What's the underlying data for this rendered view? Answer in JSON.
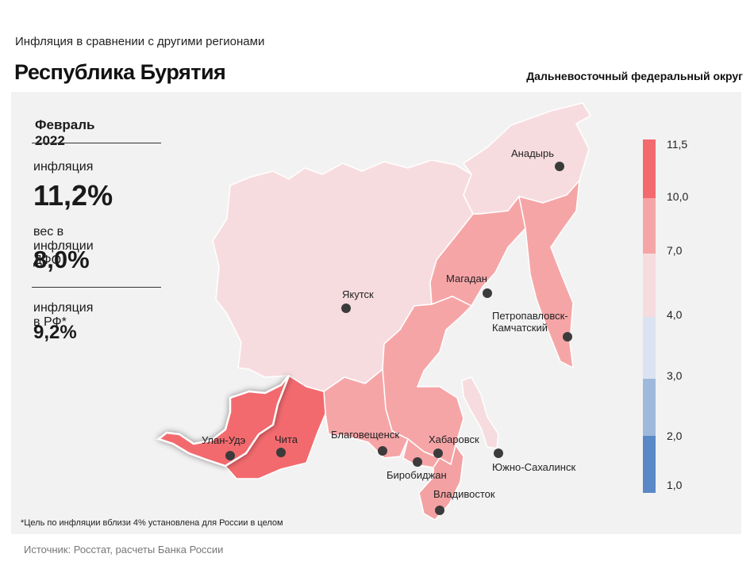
{
  "header": {
    "subtitle": "Инфляция  в сравнении  с другими  регионами",
    "title": "Республика Бурятия",
    "district": "Дальневосточный федеральный округ"
  },
  "summary": {
    "period": "Февраль 2022",
    "inflation_label": "инфляция",
    "inflation_value": "11,2%",
    "weight_label": "вес в инфляции  ДФО",
    "weight_value": "8,0%",
    "rf_label": "инфляция  в РФ*",
    "rf_value": "9,2%"
  },
  "cities": [
    {
      "name": "Анадырь"
    },
    {
      "name": "Магадан"
    },
    {
      "name": "Якутск"
    },
    {
      "name": "Петропавловск-"
    },
    {
      "name": "Камчатский"
    },
    {
      "name": "Улан-Удэ"
    },
    {
      "name": "Чита"
    },
    {
      "name": "Благовещенск"
    },
    {
      "name": "Хабаровск"
    },
    {
      "name": "Биробиджан"
    },
    {
      "name": "Южно-Сахалинск"
    },
    {
      "name": "Владивосток"
    }
  ],
  "legend": {
    "ticks": [
      "11,5",
      "10,0",
      "7,0",
      "4,0",
      "3,0",
      "2,0",
      "1,0"
    ],
    "colors": [
      "#f26a6e",
      "#f6a5a7",
      "#f7dcdf",
      "#dbe3f2",
      "#9fb9dc",
      "#5b88c6"
    ]
  },
  "map_colors": {
    "buryatia": "#f26a6e",
    "chita": "#f26a6e",
    "mid": "#f6a5a7",
    "light": "#f7dcdf",
    "primorye": "#f4a1a3"
  },
  "footnote": "*Цель по инфляции вблизи 4% установлена для России в целом",
  "source": "Источник: Росстат, расчеты Банка России"
}
